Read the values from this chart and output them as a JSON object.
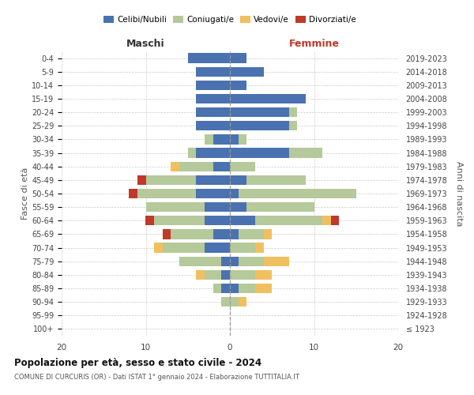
{
  "age_groups": [
    "100+",
    "95-99",
    "90-94",
    "85-89",
    "80-84",
    "75-79",
    "70-74",
    "65-69",
    "60-64",
    "55-59",
    "50-54",
    "45-49",
    "40-44",
    "35-39",
    "30-34",
    "25-29",
    "20-24",
    "15-19",
    "10-14",
    "5-9",
    "0-4"
  ],
  "birth_years": [
    "≤ 1923",
    "1924-1928",
    "1929-1933",
    "1934-1938",
    "1939-1943",
    "1944-1948",
    "1949-1953",
    "1954-1958",
    "1959-1963",
    "1964-1968",
    "1969-1973",
    "1974-1978",
    "1979-1983",
    "1984-1988",
    "1989-1993",
    "1994-1998",
    "1999-2003",
    "2004-2008",
    "2009-2013",
    "2014-2018",
    "2019-2023"
  ],
  "males_celibi": [
    0,
    0,
    0,
    1,
    1,
    1,
    3,
    2,
    3,
    3,
    4,
    4,
    2,
    4,
    2,
    4,
    4,
    4,
    4,
    4,
    5
  ],
  "males_coniugati": [
    0,
    0,
    1,
    1,
    2,
    5,
    5,
    5,
    6,
    7,
    7,
    6,
    4,
    1,
    1,
    0,
    0,
    0,
    0,
    0,
    0
  ],
  "males_vedovi": [
    0,
    0,
    0,
    0,
    1,
    0,
    1,
    0,
    0,
    0,
    0,
    0,
    1,
    0,
    0,
    0,
    0,
    0,
    0,
    0,
    0
  ],
  "males_divorziati": [
    0,
    0,
    0,
    0,
    0,
    0,
    0,
    1,
    1,
    0,
    1,
    1,
    0,
    0,
    0,
    0,
    0,
    0,
    0,
    0,
    0
  ],
  "fem_nubili": [
    0,
    0,
    0,
    1,
    0,
    1,
    0,
    1,
    3,
    2,
    1,
    2,
    0,
    7,
    1,
    7,
    7,
    9,
    2,
    4,
    2
  ],
  "fem_coniugate": [
    0,
    0,
    1,
    2,
    3,
    3,
    3,
    3,
    8,
    8,
    14,
    7,
    3,
    4,
    1,
    1,
    1,
    0,
    0,
    0,
    0
  ],
  "fem_vedove": [
    0,
    0,
    1,
    2,
    2,
    3,
    1,
    1,
    1,
    0,
    0,
    0,
    0,
    0,
    0,
    0,
    0,
    0,
    0,
    0,
    0
  ],
  "fem_divorziate": [
    0,
    0,
    0,
    0,
    0,
    0,
    0,
    0,
    1,
    0,
    0,
    0,
    0,
    0,
    0,
    0,
    0,
    0,
    0,
    0,
    0
  ],
  "color_celibi": "#4a72b0",
  "color_coniugati": "#b5c99a",
  "color_vedovi": "#f0c060",
  "color_divorziati": "#c0392b",
  "xlim": 20,
  "title": "Popolazione per età, sesso e stato civile - 2024",
  "subtitle": "COMUNE DI CURCURIS (OR) - Dati ISTAT 1° gennaio 2024 - Elaborazione TUTTITALIA.IT",
  "ylabel_left": "Fasce di età",
  "ylabel_right": "Anni di nascita",
  "label_maschi": "Maschi",
  "label_femmine": "Femmine",
  "legend_labels": [
    "Celibi/Nubili",
    "Coniugati/e",
    "Vedovi/e",
    "Divorziati/e"
  ]
}
